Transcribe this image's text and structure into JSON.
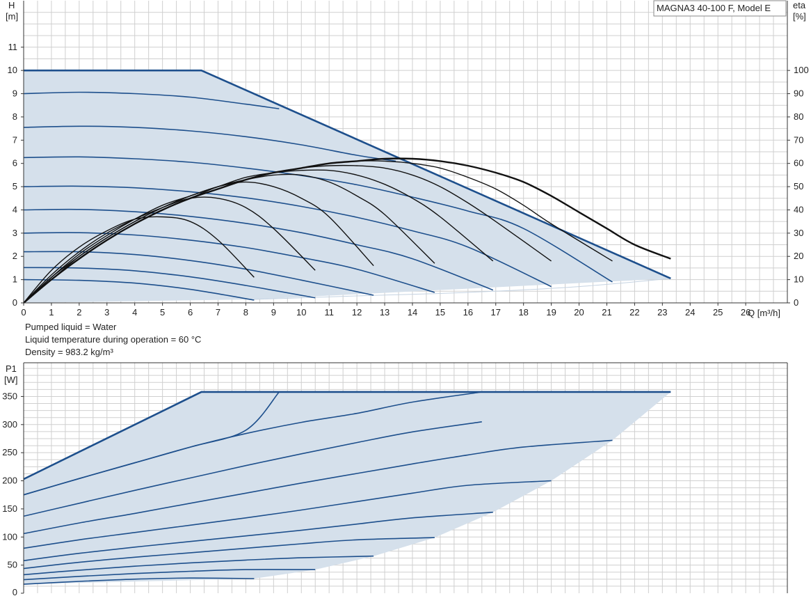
{
  "title": "MAGNA3 40-100 F, Model E",
  "info": {
    "liquid": "Pumped liquid = Water",
    "temperature": "Liquid temperature during operation = 60 °C",
    "density": "Density = 983.2 kg/m³"
  },
  "colors": {
    "curve": "#1d4f8c",
    "area": "#d5e0eb",
    "eta": "#111111",
    "grid": "#cfcfcf"
  },
  "chart_data": [
    {
      "type": "line",
      "name": "head",
      "xlabel": "Q [m³/h]",
      "ylabel_line1": "H",
      "ylabel_line2": "[m]",
      "y2label_line1": "eta",
      "y2label_line2": "[%]",
      "xlim": [
        0,
        27.5
      ],
      "ylim": [
        0,
        13
      ],
      "y2lim": [
        0,
        130
      ],
      "xticks": [
        0,
        1,
        2,
        3,
        4,
        5,
        6,
        7,
        8,
        9,
        10,
        11,
        12,
        13,
        14,
        15,
        16,
        17,
        18,
        19,
        20,
        21,
        22,
        23,
        24,
        25,
        26
      ],
      "yticks": [
        0,
        1,
        2,
        3,
        4,
        5,
        6,
        7,
        8,
        9,
        10,
        11
      ],
      "y2ticks": [
        0,
        10,
        20,
        30,
        40,
        50,
        60,
        70,
        80,
        90,
        100
      ],
      "envelope": [
        [
          0,
          10
        ],
        [
          6.4,
          10
        ],
        [
          23.3,
          1.05
        ],
        [
          8.3,
          0.15
        ],
        [
          0,
          0
        ]
      ],
      "min_curve": [
        [
          8.3,
          0.15
        ],
        [
          12,
          0.3
        ],
        [
          16,
          0.45
        ],
        [
          20,
          0.7
        ],
        [
          23.3,
          1.05
        ]
      ],
      "head_curves": [
        {
          "x": [
            0,
            2,
            4,
            6,
            8.3
          ],
          "y": [
            1.0,
            0.97,
            0.85,
            0.58,
            0.12
          ]
        },
        {
          "x": [
            0,
            2,
            4,
            6,
            8,
            10.5
          ],
          "y": [
            1.52,
            1.5,
            1.38,
            1.12,
            0.75,
            0.22
          ]
        },
        {
          "x": [
            0,
            2,
            4,
            6,
            8,
            10,
            12.6
          ],
          "y": [
            2.2,
            2.2,
            2.08,
            1.82,
            1.45,
            0.98,
            0.33
          ]
        },
        {
          "x": [
            0,
            2,
            4,
            6,
            8,
            10,
            12,
            14.8
          ],
          "y": [
            3.0,
            3.02,
            2.92,
            2.7,
            2.38,
            1.95,
            1.45,
            0.45
          ]
        },
        {
          "x": [
            0,
            2,
            4,
            6,
            8,
            10,
            12,
            14,
            16.9
          ],
          "y": [
            4.0,
            4.02,
            3.92,
            3.72,
            3.42,
            3.02,
            2.5,
            1.9,
            0.55
          ]
        },
        {
          "x": [
            0,
            2,
            4,
            6,
            8,
            10,
            12,
            14,
            16,
            19.0
          ],
          "y": [
            5.0,
            5.02,
            4.95,
            4.78,
            4.52,
            4.15,
            3.68,
            3.1,
            2.4,
            0.7
          ]
        },
        {
          "x": [
            0,
            2,
            4,
            6,
            8,
            10,
            12,
            14,
            16,
            18,
            21.2
          ],
          "y": [
            6.25,
            6.28,
            6.2,
            6.05,
            5.8,
            5.48,
            5.08,
            4.55,
            3.95,
            3.2,
            0.9
          ]
        },
        {
          "x": [
            0,
            2,
            4,
            6,
            8,
            10,
            12,
            13.4
          ],
          "y": [
            7.55,
            7.6,
            7.55,
            7.4,
            7.15,
            6.8,
            6.35,
            6.1
          ]
        },
        {
          "x": [
            0,
            2,
            4,
            6,
            8,
            9.2
          ],
          "y": [
            9.0,
            9.06,
            9.0,
            8.85,
            8.55,
            8.35
          ]
        }
      ],
      "eta_curves": [
        {
          "x": [
            0,
            1,
            2,
            3,
            4,
            5,
            6,
            7,
            8.3
          ],
          "y": [
            0,
            14,
            24,
            31,
            36,
            37,
            35,
            27,
            11
          ]
        },
        {
          "x": [
            0,
            1,
            2,
            3,
            4,
            5,
            6,
            7,
            8,
            9,
            10.5
          ],
          "y": [
            0,
            12,
            22,
            30,
            36,
            41,
            45,
            45,
            41,
            32,
            14
          ]
        },
        {
          "x": [
            0,
            1,
            2,
            3,
            4,
            5,
            6,
            7,
            8,
            9,
            10,
            11,
            12.6
          ],
          "y": [
            0,
            11,
            21,
            29,
            36,
            42,
            46,
            50,
            52,
            50,
            45,
            37,
            16
          ]
        },
        {
          "x": [
            0,
            1,
            2,
            3,
            4,
            5,
            6,
            7,
            8,
            9,
            10,
            11,
            12,
            13,
            14.8
          ],
          "y": [
            0,
            11,
            20,
            28,
            35,
            41,
            46,
            50,
            53,
            55,
            55,
            52,
            46,
            38,
            17
          ]
        },
        {
          "x": [
            0,
            1,
            2,
            3,
            4,
            5,
            6,
            7,
            8,
            9,
            10,
            11,
            12,
            13,
            14,
            15,
            16.9
          ],
          "y": [
            0,
            10,
            20,
            28,
            35,
            41,
            46,
            50,
            54,
            56,
            57,
            57,
            55,
            51,
            45,
            37,
            18
          ]
        },
        {
          "x": [
            0,
            1,
            2,
            3,
            4,
            5,
            6,
            7,
            8,
            9,
            10,
            11,
            12,
            13,
            14,
            15,
            16,
            17,
            19.0
          ],
          "y": [
            0,
            10,
            19,
            27,
            34,
            40,
            45,
            50,
            53,
            56,
            58,
            59,
            59,
            58,
            55,
            50,
            43,
            35,
            18
          ]
        },
        {
          "x": [
            0,
            1,
            2,
            3,
            4,
            5,
            6,
            7,
            8,
            9,
            10,
            11,
            12,
            13,
            14,
            15,
            16,
            17,
            18,
            19,
            21.2
          ],
          "y": [
            0,
            10,
            19,
            27,
            34,
            40,
            45,
            49,
            53,
            56,
            58,
            60,
            61,
            61,
            60,
            58,
            54,
            49,
            42,
            34,
            18
          ]
        },
        {
          "x": [
            0,
            1,
            2,
            3,
            4,
            5,
            6,
            7,
            8,
            9,
            10,
            11,
            12,
            13,
            14,
            15,
            16,
            17,
            18,
            19,
            20,
            21,
            22,
            23.3
          ],
          "y": [
            0,
            10,
            19,
            27,
            34,
            40,
            45,
            49,
            53,
            56,
            58,
            60,
            61,
            62,
            62,
            61,
            59,
            56,
            52,
            46,
            39,
            32,
            25,
            19
          ]
        }
      ]
    },
    {
      "type": "line",
      "name": "power",
      "ylabel_line1": "P1",
      "ylabel_line2": "[W]",
      "xlim": [
        0,
        27.5
      ],
      "ylim": [
        0,
        410
      ],
      "yticks": [
        0,
        50,
        100,
        150,
        200,
        250,
        300,
        350
      ],
      "envelope": [
        [
          0,
          203
        ],
        [
          6.4,
          358
        ],
        [
          23.3,
          358
        ],
        [
          21.2,
          272
        ],
        [
          19.0,
          200
        ],
        [
          16.9,
          144
        ],
        [
          14.8,
          99
        ],
        [
          12.6,
          66
        ],
        [
          10.5,
          42
        ],
        [
          8.3,
          26
        ],
        [
          0,
          16
        ]
      ],
      "power_curves": [
        {
          "x": [
            0,
            2,
            4,
            6,
            8.3
          ],
          "y": [
            16,
            21,
            25,
            27,
            26
          ]
        },
        {
          "x": [
            0,
            2,
            4,
            6,
            8,
            10.5
          ],
          "y": [
            24,
            30,
            35,
            39,
            42,
            42
          ]
        },
        {
          "x": [
            0,
            2,
            4,
            6,
            8,
            10,
            12.6
          ],
          "y": [
            33,
            41,
            48,
            54,
            59,
            63,
            66
          ]
        },
        {
          "x": [
            0,
            2,
            4,
            6,
            8,
            10,
            12,
            14.8
          ],
          "y": [
            44,
            55,
            64,
            72,
            80,
            88,
            95,
            99
          ]
        },
        {
          "x": [
            0,
            2,
            4,
            6,
            8,
            10,
            12,
            14,
            16.9
          ],
          "y": [
            58,
            71,
            82,
            92,
            102,
            112,
            123,
            134,
            144
          ]
        },
        {
          "x": [
            0,
            2,
            4,
            6,
            8,
            10,
            12,
            14,
            16,
            19.0
          ],
          "y": [
            80,
            95,
            108,
            121,
            134,
            148,
            163,
            178,
            192,
            200
          ]
        },
        {
          "x": [
            0,
            2,
            4,
            6,
            8,
            10,
            12,
            14,
            16,
            18,
            21.2
          ],
          "y": [
            106,
            125,
            142,
            160,
            178,
            196,
            213,
            230,
            246,
            260,
            272
          ]
        },
        {
          "x": [
            0,
            2,
            4,
            6,
            8,
            10,
            12,
            14,
            16.5
          ],
          "y": [
            137,
            160,
            183,
            205,
            227,
            248,
            268,
            287,
            305
          ]
        },
        {
          "x": [
            0,
            2,
            4,
            6,
            8,
            10,
            12,
            14,
            16.5
          ],
          "y": [
            175,
            204,
            232,
            260,
            284,
            304,
            320,
            340,
            358
          ]
        },
        {
          "x": [
            0,
            2,
            4,
            6,
            8,
            9.2
          ],
          "y": [
            175,
            204,
            232,
            260,
            290,
            358
          ]
        }
      ]
    }
  ]
}
